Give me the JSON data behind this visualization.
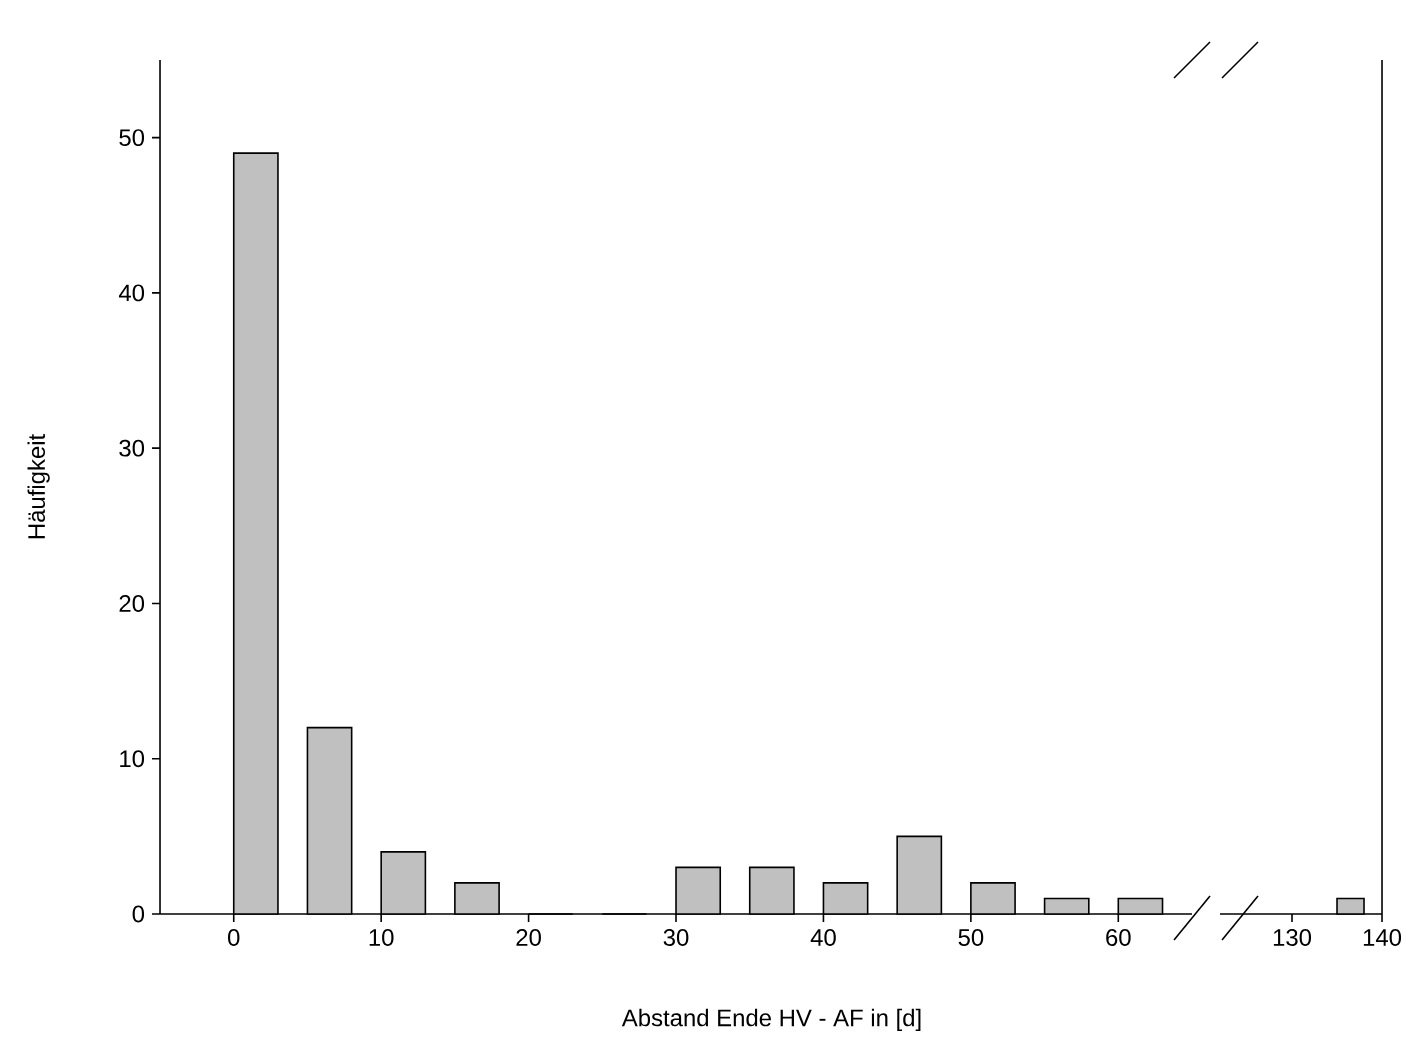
{
  "chart_data": [
    {
      "type": "bar",
      "xlabel": "Abstand Ende HV - AF in [d]",
      "ylabel": "Häufigkeit",
      "x": [
        1.5,
        6.5,
        11.5,
        16.5,
        21.5,
        26.5,
        31.5,
        36.5,
        41.5,
        46.5,
        51.5,
        56.5,
        61.5
      ],
      "values": [
        49,
        12,
        4,
        2,
        0,
        0,
        3,
        3,
        2,
        5,
        2,
        1,
        1
      ],
      "color": "#c0c0c0",
      "xlim": [
        -5,
        65
      ],
      "xticks": [
        0,
        10,
        20,
        30,
        40,
        50,
        60
      ],
      "ylim": [
        0,
        55
      ],
      "yticks": [
        0,
        10,
        20,
        30,
        40,
        50
      ],
      "grid": false
    },
    {
      "type": "bar",
      "x": [
        136.5
      ],
      "values": [
        1
      ],
      "color": "#c0c0c0",
      "xlim": [
        122,
        140
      ],
      "xticks": [
        130,
        140
      ],
      "ylim": [
        0,
        55
      ],
      "tick_labels": "x",
      "grid": false
    }
  ]
}
